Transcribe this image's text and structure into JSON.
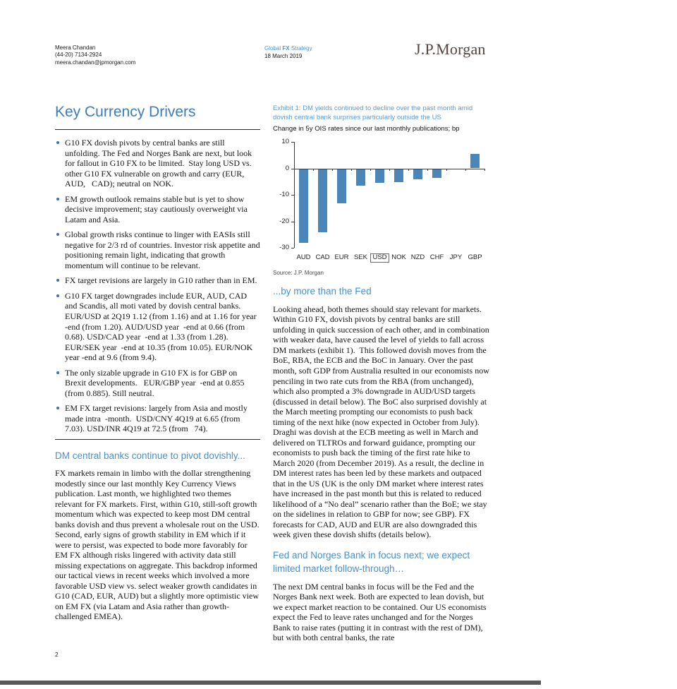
{
  "header": {
    "author": {
      "name": "Meera Chandan",
      "phone": "(44-20) 7134-2924",
      "email": "meera.chandan@jpmorgan.com"
    },
    "publication": {
      "series_pre": "Global ",
      "series_bold": "FX",
      "series_post": " Strategy",
      "date": "18 March 2019"
    },
    "logo": "J.P.Morgan"
  },
  "left": {
    "title": "Key Currency Drivers",
    "bullets": [
      "G10 FX dovish pivots by central banks are still unfolding. The Fed and Norges Bank are next, but look for fallout in G10 FX to be limited.  Stay long USD vs. other G10 FX vulnerable on growth and carry (EUR, AUD,   CAD); neutral on NOK.",
      "EM growth outlook remains stable but is yet to show decisive improvement; stay cautiously overweight via Latam and Asia.",
      "Global growth risks continue to linger with EASIs still negative for 2/3 rd of countries. Investor risk appetite and positioning remain light, indicating that growth momentum will continue to be relevant.",
      "FX target revisions are largely in G10 rather than in EM.",
      "G10 FX target downgrades include EUR, AUD, CAD and Scandis, all moti vated by dovish central banks. EUR/USD at 2Q19 1.12 (from 1.16) and at 1.16 for year -end (from 1.20). AUD/USD year  -end at 0.66 (from 0.68). USD/CAD year  -end at 1.33 (from 1.28). EUR/SEK year  -end at 10.35 (from 10.05). EUR/NOK year -end at 9.6 (from 9.4).",
      "The only sizable upgrade in G10 FX is for GBP on Brexit developments.   EUR/GBP year  -end at 0.855 (from 0.885). Still neutral.",
      "EM FX target revisions: largely from Asia and mostly made intra  -month.  USD/CNY 4Q19 at 6.65 (from 7.03). USD/INR 4Q19 at 72.5 (from   74)."
    ],
    "section_heading": "DM central banks continue to pivot dovishly...",
    "body": "FX markets remain in limbo with the dollar strengthening modestly since our last monthly Key Currency Views publication. Last month, we highlighted two themes relevant for FX markets. First, within G10, still-soft growth momentum which was expected to keep most DM central banks dovish and thus prevent a wholesale rout on the USD. Second, early signs of growth stability in EM which if it were to persist, was expected to bode more favorably for EM FX although risks lingered with activity data still missing expectations on aggregate. This backdrop informed our tactical views in recent weeks which involved a more favorable USD view vs. select weaker growth candidates in G10 (CAD, EUR, AUD) but a slightly more optimistic view on EM FX (via Latam and Asia rather than growth-challenged EMEA)."
  },
  "right": {
    "exhibit": {
      "title": "Exhibit 1: DM yields continued to decline over the past month amid dovish central bank surprises particularly outside the US",
      "subtitle": "Change in 5y OIS rates since our last monthly publications; bp",
      "source": "Source: J.P. Morgan"
    },
    "section1": {
      "heading": "...by more than the Fed",
      "body": "Looking ahead, both themes should stay relevant for markets. Within G10 FX, dovish pivots by central banks are still unfolding in quick succession of each other, and in combination with weaker data, have caused the level of yields to fall across DM markets (exhibit 1).  This followed dovish moves from the BoE, RBA, the ECB and the BoC in January. Over the past month, soft GDP from Australia resulted in our economists now penciling in two rate cuts from the RBA (from unchanged), which also prompted a 3% downgrade in AUD/USD targets (discussed in detail below). The BoC also surprised dovishly at the March meeting prompting our economists to push back timing of the next hike (now expected in October from July). Draghi was dovish at the ECB meeting as well in March and delivered on TLTROs and forward guidance, prompting our economists to push back the timing of the first rate hike to March 2020 (from December 2019). As a result, the decline in DM interest rates has been led by these markets and outpaced that in the US (UK is the only DM market where interest rates have increased in the past month but this is related to reduced likelihood of a “No deal” scenario rather than the BoE; we stay on the sidelines in relation to GBP for now; see GBP). FX forecasts for CAD, AUD and EUR are also downgraded this week given these dovish shifts (details below)."
    },
    "section2": {
      "heading": "Fed and Norges Bank in focus next; we expect limited market follow-through…",
      "body": "The next DM central banks in focus will be the Fed and the Norges Bank next week. Both are expected to lean dovish, but we expect market reaction to be contained. Our US economists expect the Fed to leave rates unchanged and for the Norges Bank to raise rates (putting it in contrast with the rest of DM), but with both central banks, the rate"
    }
  },
  "chart_data": {
    "type": "bar",
    "title": "Exhibit 1: DM yields continued to decline over the past month amid dovish central bank surprises particularly outside the US",
    "ylabel": "Change in 5y OIS rates since our last monthly publications; bp",
    "categories": [
      "AUD",
      "CAD",
      "EUR",
      "SEK",
      "USD",
      "NOK",
      "NZD",
      "CHF",
      "JPY",
      "GBP"
    ],
    "values": [
      -28,
      -24,
      -13,
      -6.5,
      -5.5,
      -5,
      -4,
      -3.5,
      0,
      5.5
    ],
    "ylim": [
      -30,
      10
    ],
    "yticks": [
      10,
      0,
      -10,
      -20,
      -30
    ],
    "grid": false,
    "legend": false,
    "bar_color": "#4A86B8",
    "highlighted_category": "USD",
    "highlight_box_color": "#E8352C",
    "source": "Source: J.P. Morgan"
  },
  "footer": {
    "page_number": "2"
  },
  "colors": {
    "title_blue": "#3E7CBA",
    "section_heading_blue": "#4A90C9",
    "exhibit_caption_blue": "#5B9BD5",
    "publication_blue": "#4E94CE",
    "logo_brown": "#54443C",
    "bar_blue": "#4A86B8",
    "highlight_red": "#E8352C",
    "footer_bar_gray": "#58585A"
  }
}
